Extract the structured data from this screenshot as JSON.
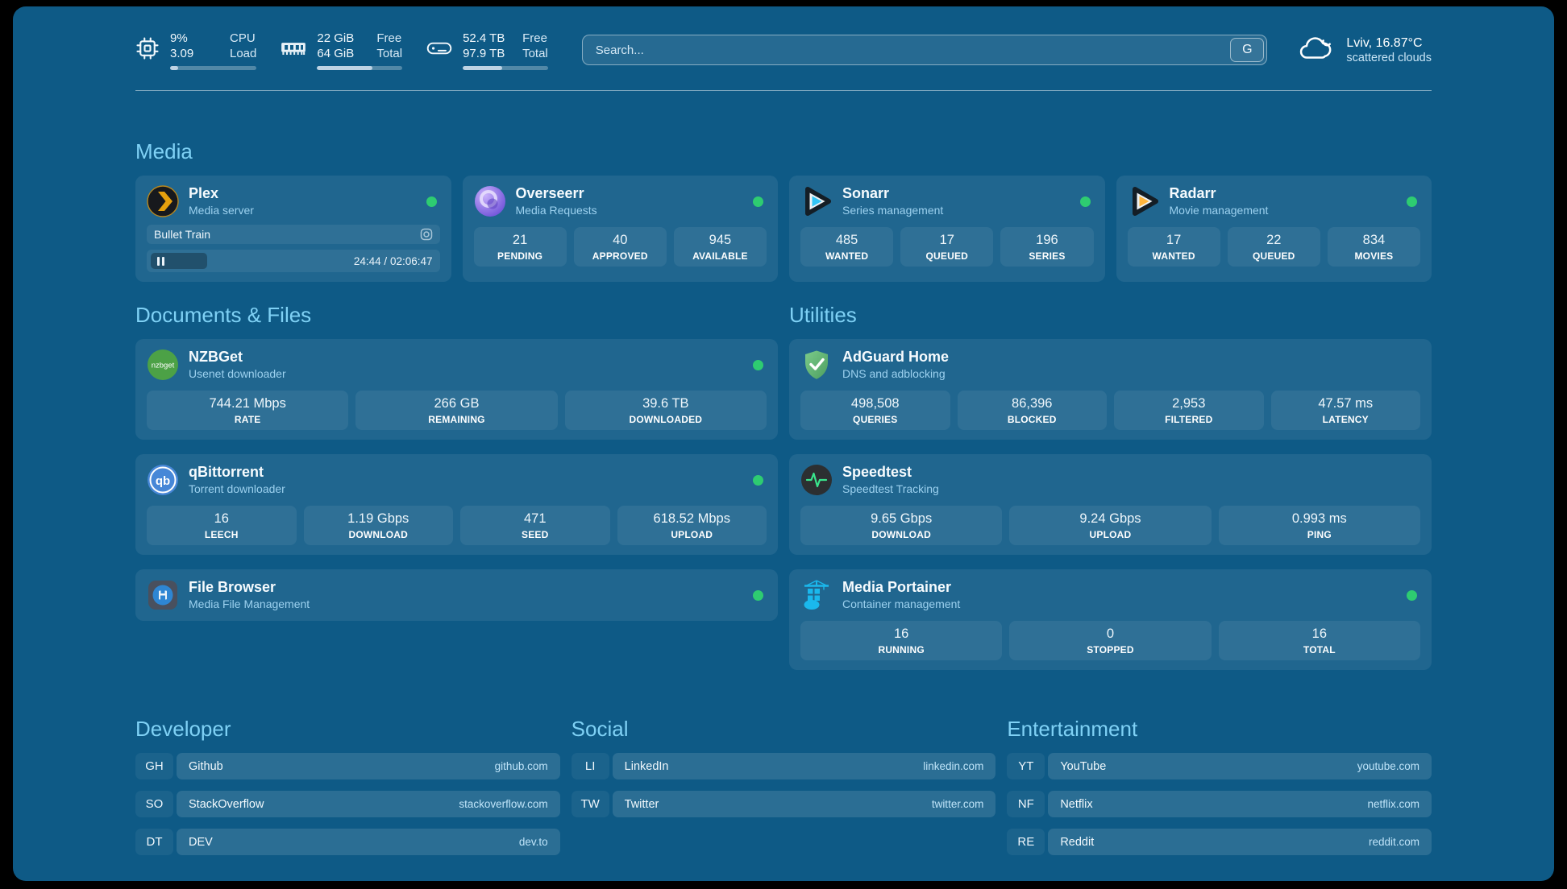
{
  "theme": {
    "page_background": "#0e5a86",
    "outer_frame": "#000000",
    "section_header_color": "#7fd1f5",
    "subtitle_color": "#9cd1ef",
    "status_online_color": "#2ecc71",
    "progress_fill_color": "#bdd3e4",
    "plex_orange": "#e5a00d",
    "sonarr_cyan": "#38c6f4",
    "radarr_yellow": "#ffb53d",
    "nzbget_green": "#4ca146",
    "qbittorrent_blue": "#4787d7",
    "adguard_green": "#67b573",
    "speedtest_green": "#39e58c",
    "portainer_blue": "#1ab8ed"
  },
  "topbar": {
    "widgets": [
      {
        "icon": "cpu-icon",
        "rows": [
          {
            "value": "9%",
            "label": "CPU"
          },
          {
            "value": "3.09",
            "label": "Load"
          }
        ],
        "progress_percent": 9
      },
      {
        "icon": "memory-icon",
        "rows": [
          {
            "value": "22 GiB",
            "label": "Free"
          },
          {
            "value": "64 GiB",
            "label": "Total"
          }
        ],
        "progress_percent": 65
      },
      {
        "icon": "disk-icon",
        "rows": [
          {
            "value": "52.4 TB",
            "label": "Free"
          },
          {
            "value": "97.9 TB",
            "label": "Total"
          }
        ],
        "progress_percent": 46
      }
    ],
    "search": {
      "placeholder": "Search...",
      "provider_button": "G"
    },
    "weather": {
      "icon": "cloud-icon",
      "location_temperature": "Lviv, 16.87°C",
      "condition": "scattered clouds"
    }
  },
  "media": {
    "section_title": "Media",
    "plex": {
      "icon": "plex-icon",
      "title": "Plex",
      "subtitle": "Media server",
      "status": "online",
      "now_playing": "Bullet Train",
      "elapsed": "24:44",
      "separator": "/",
      "duration": "02:06:47",
      "progress_percent": 20
    },
    "overseerr": {
      "icon": "overseerr-icon",
      "title": "Overseerr",
      "subtitle": "Media Requests",
      "status": "online",
      "stats": [
        {
          "value": "21",
          "label": "PENDING"
        },
        {
          "value": "40",
          "label": "APPROVED"
        },
        {
          "value": "945",
          "label": "AVAILABLE"
        }
      ]
    },
    "sonarr": {
      "icon": "sonarr-icon",
      "title": "Sonarr",
      "subtitle": "Series management",
      "status": "online",
      "stats": [
        {
          "value": "485",
          "label": "WANTED"
        },
        {
          "value": "17",
          "label": "QUEUED"
        },
        {
          "value": "196",
          "label": "SERIES"
        }
      ]
    },
    "radarr": {
      "icon": "radarr-icon",
      "title": "Radarr",
      "subtitle": "Movie management",
      "status": "online",
      "stats": [
        {
          "value": "17",
          "label": "WANTED"
        },
        {
          "value": "22",
          "label": "QUEUED"
        },
        {
          "value": "834",
          "label": "MOVIES"
        }
      ]
    }
  },
  "documents": {
    "section_title": "Documents & Files",
    "nzbget": {
      "icon": "nzbget-icon",
      "title": "NZBGet",
      "subtitle": "Usenet downloader",
      "status": "online",
      "stats": [
        {
          "value": "744.21 Mbps",
          "label": "RATE"
        },
        {
          "value": "266 GB",
          "label": "REMAINING"
        },
        {
          "value": "39.6 TB",
          "label": "DOWNLOADED"
        }
      ]
    },
    "qbittorrent": {
      "icon": "qbittorrent-icon",
      "title": "qBittorrent",
      "subtitle": "Torrent downloader",
      "status": "online",
      "stats": [
        {
          "value": "16",
          "label": "LEECH"
        },
        {
          "value": "1.19 Gbps",
          "label": "DOWNLOAD"
        },
        {
          "value": "471",
          "label": "SEED"
        },
        {
          "value": "618.52 Mbps",
          "label": "UPLOAD"
        }
      ]
    },
    "filebrowser": {
      "icon": "filebrowser-icon",
      "title": "File Browser",
      "subtitle": "Media File Management",
      "status": "online"
    }
  },
  "utilities": {
    "section_title": "Utilities",
    "adguard": {
      "icon": "adguard-icon",
      "title": "AdGuard Home",
      "subtitle": "DNS and adblocking",
      "stats": [
        {
          "value": "498,508",
          "label": "QUERIES"
        },
        {
          "value": "86,396",
          "label": "BLOCKED"
        },
        {
          "value": "2,953",
          "label": "FILTERED"
        },
        {
          "value": "47.57 ms",
          "label": "LATENCY"
        }
      ]
    },
    "speedtest": {
      "icon": "speedtest-icon",
      "title": "Speedtest",
      "subtitle": "Speedtest Tracking",
      "stats": [
        {
          "value": "9.65 Gbps",
          "label": "DOWNLOAD"
        },
        {
          "value": "9.24 Gbps",
          "label": "UPLOAD"
        },
        {
          "value": "0.993 ms",
          "label": "PING"
        }
      ]
    },
    "portainer": {
      "icon": "portainer-icon",
      "title": "Media Portainer",
      "subtitle": "Container management",
      "status": "online",
      "stats": [
        {
          "value": "16",
          "label": "RUNNING"
        },
        {
          "value": "0",
          "label": "STOPPED"
        },
        {
          "value": "16",
          "label": "TOTAL"
        }
      ]
    }
  },
  "bookmarks": {
    "developer": {
      "section_title": "Developer",
      "items": [
        {
          "abbr": "GH",
          "name": "Github",
          "url": "github.com"
        },
        {
          "abbr": "SO",
          "name": "StackOverflow",
          "url": "stackoverflow.com"
        },
        {
          "abbr": "DT",
          "name": "DEV",
          "url": "dev.to"
        }
      ]
    },
    "social": {
      "section_title": "Social",
      "items": [
        {
          "abbr": "LI",
          "name": "LinkedIn",
          "url": "linkedin.com"
        },
        {
          "abbr": "TW",
          "name": "Twitter",
          "url": "twitter.com"
        }
      ]
    },
    "entertainment": {
      "section_title": "Entertainment",
      "items": [
        {
          "abbr": "YT",
          "name": "YouTube",
          "url": "youtube.com"
        },
        {
          "abbr": "NF",
          "name": "Netflix",
          "url": "netflix.com"
        },
        {
          "abbr": "RE",
          "name": "Reddit",
          "url": "reddit.com"
        }
      ]
    }
  }
}
